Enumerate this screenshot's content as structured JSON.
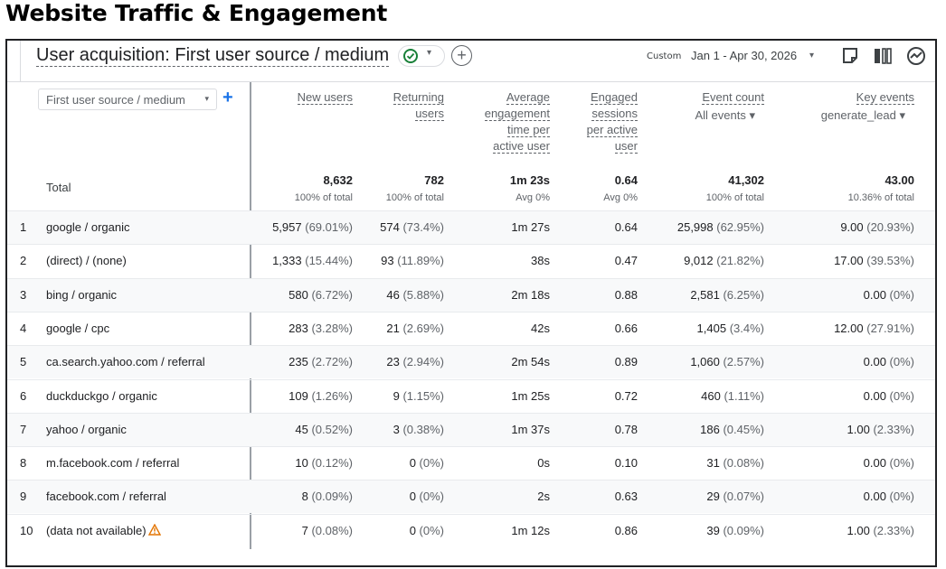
{
  "page_title": "Website Traffic & Engagement",
  "toolbar": {
    "report_title": "User acquisition: First user source / medium",
    "plus": "+",
    "custom_label": "Custom",
    "date_range": "Jan 1 - Apr 30, 2026",
    "caret": "▾"
  },
  "dimension": {
    "label": "First user source / medium",
    "add": "+"
  },
  "columns": [
    {
      "lines": [
        "New users"
      ],
      "sub": ""
    },
    {
      "lines": [
        "Returning",
        "users"
      ],
      "sub": ""
    },
    {
      "lines": [
        "Average",
        "engagement",
        "time per",
        "active user"
      ],
      "sub": ""
    },
    {
      "lines": [
        "Engaged",
        "sessions",
        "per active",
        "user"
      ],
      "sub": ""
    },
    {
      "lines": [
        "Event count"
      ],
      "sub": "All events"
    },
    {
      "lines": [
        "Key events"
      ],
      "sub": "generate_lead"
    }
  ],
  "totals": {
    "label": "Total",
    "values": [
      {
        "v": "8,632",
        "s": "100% of total"
      },
      {
        "v": "782",
        "s": "100% of total"
      },
      {
        "v": "1m 23s",
        "s": "Avg 0%"
      },
      {
        "v": "0.64",
        "s": "Avg 0%"
      },
      {
        "v": "41,302",
        "s": "100% of total"
      },
      {
        "v": "43.00",
        "s": "10.36% of total"
      }
    ]
  },
  "rows": [
    {
      "rank": "1",
      "source": "google / organic",
      "cells": [
        [
          "5,957",
          "(69.01%)"
        ],
        [
          "574",
          "(73.4%)"
        ],
        [
          "1m 27s",
          ""
        ],
        [
          "0.64",
          ""
        ],
        [
          "25,998",
          "(62.95%)"
        ],
        [
          "9.00",
          "(20.93%)"
        ]
      ]
    },
    {
      "rank": "2",
      "source": "(direct) / (none)",
      "cells": [
        [
          "1,333",
          "(15.44%)"
        ],
        [
          "93",
          "(11.89%)"
        ],
        [
          "38s",
          ""
        ],
        [
          "0.47",
          ""
        ],
        [
          "9,012",
          "(21.82%)"
        ],
        [
          "17.00",
          "(39.53%)"
        ]
      ]
    },
    {
      "rank": "3",
      "source": "bing / organic",
      "cells": [
        [
          "580",
          "(6.72%)"
        ],
        [
          "46",
          "(5.88%)"
        ],
        [
          "2m 18s",
          ""
        ],
        [
          "0.88",
          ""
        ],
        [
          "2,581",
          "(6.25%)"
        ],
        [
          "0.00",
          "(0%)"
        ]
      ]
    },
    {
      "rank": "4",
      "source": "google / cpc",
      "cells": [
        [
          "283",
          "(3.28%)"
        ],
        [
          "21",
          "(2.69%)"
        ],
        [
          "42s",
          ""
        ],
        [
          "0.66",
          ""
        ],
        [
          "1,405",
          "(3.4%)"
        ],
        [
          "12.00",
          "(27.91%)"
        ]
      ]
    },
    {
      "rank": "5",
      "source": "ca.search.yahoo.com / referral",
      "cells": [
        [
          "235",
          "(2.72%)"
        ],
        [
          "23",
          "(2.94%)"
        ],
        [
          "2m 54s",
          ""
        ],
        [
          "0.89",
          ""
        ],
        [
          "1,060",
          "(2.57%)"
        ],
        [
          "0.00",
          "(0%)"
        ]
      ]
    },
    {
      "rank": "6",
      "source": "duckduckgo / organic",
      "cells": [
        [
          "109",
          "(1.26%)"
        ],
        [
          "9",
          "(1.15%)"
        ],
        [
          "1m 25s",
          ""
        ],
        [
          "0.72",
          ""
        ],
        [
          "460",
          "(1.11%)"
        ],
        [
          "0.00",
          "(0%)"
        ]
      ]
    },
    {
      "rank": "7",
      "source": "yahoo / organic",
      "cells": [
        [
          "45",
          "(0.52%)"
        ],
        [
          "3",
          "(0.38%)"
        ],
        [
          "1m 37s",
          ""
        ],
        [
          "0.78",
          ""
        ],
        [
          "186",
          "(0.45%)"
        ],
        [
          "1.00",
          "(2.33%)"
        ]
      ]
    },
    {
      "rank": "8",
      "source": "m.facebook.com / referral",
      "cells": [
        [
          "10",
          "(0.12%)"
        ],
        [
          "0",
          "(0%)"
        ],
        [
          "0s",
          ""
        ],
        [
          "0.10",
          ""
        ],
        [
          "31",
          "(0.08%)"
        ],
        [
          "0.00",
          "(0%)"
        ]
      ]
    },
    {
      "rank": "9",
      "source": "facebook.com / referral",
      "cells": [
        [
          "8",
          "(0.09%)"
        ],
        [
          "0",
          "(0%)"
        ],
        [
          "2s",
          ""
        ],
        [
          "0.63",
          ""
        ],
        [
          "29",
          "(0.07%)"
        ],
        [
          "0.00",
          "(0%)"
        ]
      ]
    },
    {
      "rank": "10",
      "source": "(data not available)",
      "warning": true,
      "cells": [
        [
          "7",
          "(0.08%)"
        ],
        [
          "0",
          "(0%)"
        ],
        [
          "1m 12s",
          ""
        ],
        [
          "0.86",
          ""
        ],
        [
          "39",
          "(0.09%)"
        ],
        [
          "1.00",
          "(2.33%)"
        ]
      ]
    }
  ],
  "colors": {
    "accent_blue": "#1a73e8",
    "success_green": "#188038",
    "warning_amber": "#e37400",
    "muted_text": "#5f6368"
  },
  "icons": [
    "check-circle-icon",
    "add-comparison-icon",
    "share-icon",
    "customize-report-icon",
    "insights-icon",
    "warning-icon"
  ]
}
